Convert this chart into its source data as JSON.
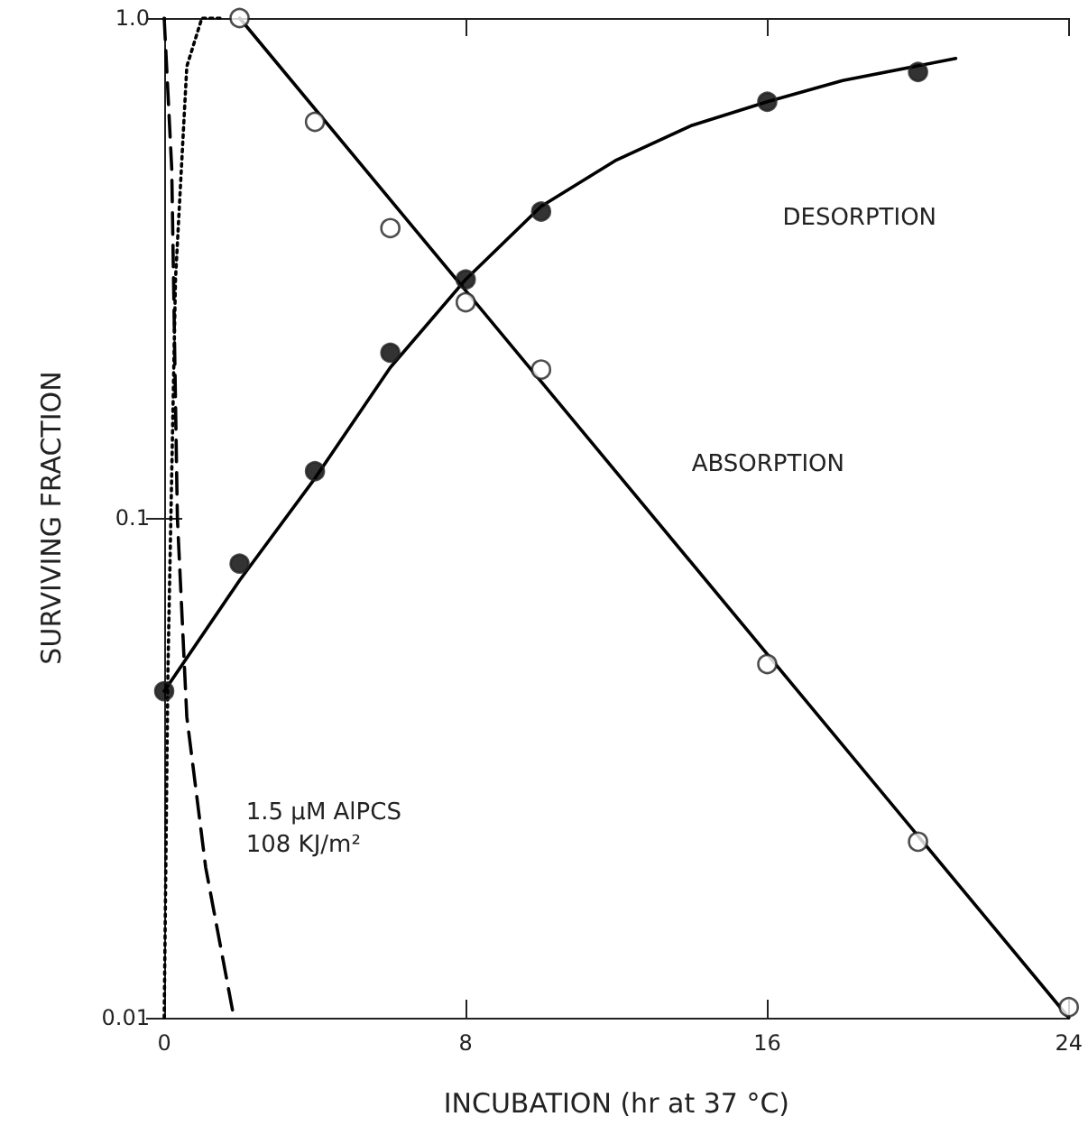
{
  "chart_data": {
    "type": "scatter",
    "xlabel": "INCUBATION (hr at 37 °C)",
    "ylabel": "SURVIVING FRACTION",
    "log": "y",
    "grid": false,
    "xlim": [
      0,
      24
    ],
    "xticks": [
      0,
      8,
      16,
      24
    ],
    "ylim": [
      0.01,
      1
    ],
    "yticks": [
      0.01,
      0.1,
      {
        "value": 1,
        "label": "1.0"
      }
    ],
    "annotations": [
      "DESORPTION",
      "ABSORPTION",
      "1.5 μM AlPCS\n108 KJ/m²"
    ],
    "series": [
      {
        "color": "#000000",
        "marker": "circle",
        "x": [
          0,
          2,
          4,
          6,
          8,
          10,
          16,
          20
        ],
        "values": [
          0.045,
          0.081,
          0.124,
          0.214,
          0.3,
          0.41,
          0.68,
          0.78
        ]
      },
      {
        "color": "#ffffff",
        "marker": "circle",
        "x": [
          2,
          4,
          6,
          8,
          10,
          16,
          20,
          24
        ],
        "values": [
          1.0,
          0.62,
          0.38,
          0.27,
          0.198,
          0.051,
          0.0225,
          0.0105
        ]
      },
      {
        "type": "line",
        "color": "#000000",
        "marker": "none",
        "line_style": "solid",
        "x": [
          0,
          2,
          4,
          6,
          8,
          10,
          12,
          14,
          16,
          18,
          21
        ],
        "values": [
          0.045,
          0.075,
          0.12,
          0.2,
          0.3,
          0.42,
          0.52,
          0.61,
          0.68,
          0.75,
          0.83
        ]
      },
      {
        "type": "line",
        "color": "#000000",
        "marker": "none",
        "line_style": "solid",
        "x": [
          2,
          24
        ],
        "values": [
          1.0,
          0.01
        ]
      },
      {
        "type": "line",
        "color": "#000000",
        "marker": "none",
        "line_style": "dashed",
        "x": [
          0,
          0.2,
          0.35,
          0.6,
          1.1,
          1.85
        ],
        "values": [
          1.0,
          0.5,
          0.1,
          0.04,
          0.02,
          0.01
        ]
      },
      {
        "type": "line",
        "color": "#000000",
        "marker": "none",
        "line_style": "dotted",
        "x": [
          0,
          0.1,
          0.3,
          0.6,
          1.0,
          1.5
        ],
        "values": [
          0.01,
          0.05,
          0.3,
          0.8,
          1.0,
          1.0
        ]
      }
    ]
  }
}
